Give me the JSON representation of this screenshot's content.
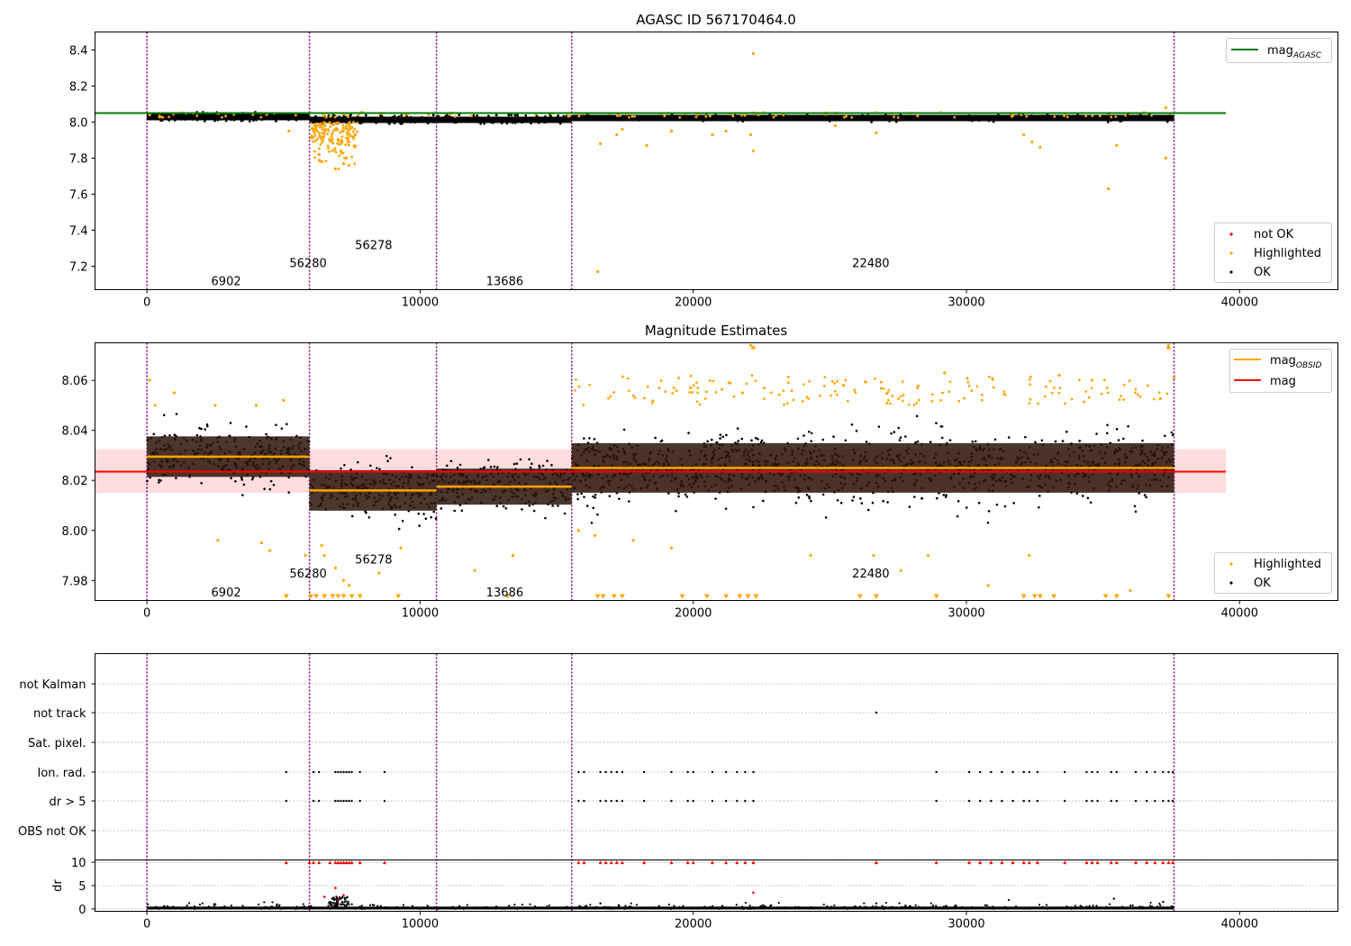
{
  "chart_data": [
    {
      "type": "scatter",
      "title": "AGASC ID 567170464.0",
      "xlim": [
        -1900,
        43600
      ],
      "ylim": [
        7.07,
        8.5
      ],
      "xticks": [
        "0",
        "10000",
        "20000",
        "30000",
        "40000"
      ],
      "xtick_values": [
        0,
        10000,
        20000,
        30000,
        40000
      ],
      "yticks": [
        "7.2",
        "7.4",
        "7.6",
        "7.8",
        "8.0",
        "8.2",
        "8.4"
      ],
      "ytick_values": [
        7.2,
        7.4,
        7.6,
        7.8,
        8.0,
        8.2,
        8.4
      ],
      "ref_line": {
        "label_main": "mag",
        "label_sub": "AGASC",
        "value": 8.05,
        "x": [
          -1900,
          39500
        ],
        "color": "#008000"
      },
      "legend_points": [
        {
          "label": "not OK",
          "color": "#ff0000"
        },
        {
          "label": "Highlighted",
          "color": "#ffa500"
        },
        {
          "label": "OK",
          "color": "#000000"
        }
      ],
      "segments": [
        {
          "label": "6902",
          "x_label": 2900,
          "y_label": 7.12
        },
        {
          "label": "56280",
          "x_label": 5900,
          "y_label": 7.22
        },
        {
          "label": "56278",
          "x_label": 8300,
          "y_label": 7.32
        },
        {
          "label": "13686",
          "x_label": 13100,
          "y_label": 7.12
        },
        {
          "label": "22480",
          "x_label": 26500,
          "y_label": 7.22
        }
      ],
      "ok_band": [
        [
          0,
          5950,
          8.03
        ],
        [
          5950,
          10600,
          8.015
        ],
        [
          10600,
          15550,
          8.015
        ],
        [
          15550,
          37600,
          8.025
        ]
      ],
      "highlighted_points": [
        [
          100,
          8.04
        ],
        [
          5200,
          7.95
        ],
        [
          6100,
          7.95
        ],
        [
          6300,
          7.82
        ],
        [
          6400,
          7.78
        ],
        [
          6900,
          7.74
        ],
        [
          7000,
          7.9
        ],
        [
          7100,
          7.84
        ],
        [
          7150,
          7.95
        ],
        [
          7200,
          7.77
        ],
        [
          7300,
          7.8
        ],
        [
          7400,
          7.76
        ],
        [
          7500,
          7.97
        ],
        [
          16500,
          7.17
        ],
        [
          16600,
          7.88
        ],
        [
          17200,
          7.93
        ],
        [
          17400,
          7.96
        ],
        [
          18300,
          7.87
        ],
        [
          19200,
          7.95
        ],
        [
          20700,
          7.93
        ],
        [
          21200,
          7.95
        ],
        [
          22100,
          7.93
        ],
        [
          22200,
          7.84
        ],
        [
          22200,
          8.38
        ],
        [
          25200,
          7.98
        ],
        [
          26700,
          7.94
        ],
        [
          32100,
          7.93
        ],
        [
          32400,
          7.89
        ],
        [
          32700,
          7.86
        ],
        [
          35200,
          7.63
        ],
        [
          35500,
          7.87
        ],
        [
          37300,
          7.8
        ],
        [
          37300,
          8.08
        ]
      ]
    },
    {
      "type": "scatter",
      "title": "Magnitude Estimates",
      "xlim": [
        -1900,
        43600
      ],
      "ylim": [
        7.972,
        8.075
      ],
      "xticks": [
        "0",
        "10000",
        "20000",
        "30000",
        "40000"
      ],
      "xtick_values": [
        0,
        10000,
        20000,
        30000,
        40000
      ],
      "yticks": [
        "7.98",
        "8.00",
        "8.02",
        "8.04",
        "8.06"
      ],
      "ytick_values": [
        7.98,
        8.0,
        8.02,
        8.04,
        8.06
      ],
      "mag_line": {
        "label": "mag",
        "value": 8.0235,
        "band": [
          8.015,
          8.0325
        ],
        "x": [
          -1900,
          39500
        ],
        "color": "#ff0000"
      },
      "mag_obsid": {
        "label_main": "mag",
        "label_sub": "OBSID",
        "color": "#ffa500",
        "segments": [
          [
            0,
            5950,
            8.0295
          ],
          [
            5950,
            10600,
            8.016
          ],
          [
            10600,
            15550,
            8.0175
          ],
          [
            15550,
            37600,
            8.025
          ]
        ]
      },
      "legend_points": [
        {
          "label": "Highlighted",
          "color": "#ffa500"
        },
        {
          "label": "OK",
          "color": "#000000"
        }
      ],
      "segments": [
        {
          "label": "6902",
          "x_label": 2900,
          "y_label": 7.9755
        },
        {
          "label": "56280",
          "x_label": 5900,
          "y_label": 7.983
        },
        {
          "label": "56278",
          "x_label": 8300,
          "y_label": 7.9885
        },
        {
          "label": "13686",
          "x_label": 13100,
          "y_label": 7.9755
        },
        {
          "label": "22480",
          "x_label": 26500,
          "y_label": 7.983
        }
      ],
      "ok_spread": [
        [
          0,
          5950,
          8.0295,
          0.009
        ],
        [
          5950,
          10600,
          8.016,
          0.009
        ],
        [
          10600,
          15550,
          8.0175,
          0.008
        ],
        [
          15550,
          37600,
          8.025,
          0.011
        ]
      ],
      "highlighted_points": [
        [
          100,
          8.06
        ],
        [
          300,
          8.05
        ],
        [
          1000,
          8.055
        ],
        [
          2500,
          8.05
        ],
        [
          4000,
          8.05
        ],
        [
          5000,
          8.052
        ],
        [
          2600,
          7.996
        ],
        [
          4200,
          7.995
        ],
        [
          4500,
          7.992
        ],
        [
          5800,
          7.99
        ],
        [
          6400,
          7.994
        ],
        [
          6500,
          7.99
        ],
        [
          6900,
          7.985
        ],
        [
          7200,
          7.98
        ],
        [
          7400,
          7.978
        ],
        [
          8500,
          7.983
        ],
        [
          9300,
          7.993
        ],
        [
          12000,
          7.984
        ],
        [
          13400,
          7.99
        ],
        [
          15800,
          8.0
        ],
        [
          16400,
          7.998
        ],
        [
          17800,
          7.996
        ],
        [
          19200,
          7.993
        ],
        [
          19900,
          8.057
        ],
        [
          21800,
          8.055
        ],
        [
          22100,
          8.074
        ],
        [
          24300,
          7.99
        ],
        [
          25500,
          8.058
        ],
        [
          26600,
          7.99
        ],
        [
          27600,
          7.984
        ],
        [
          28600,
          7.99
        ],
        [
          29200,
          8.063
        ],
        [
          30800,
          7.978
        ],
        [
          32300,
          7.99
        ],
        [
          33400,
          8.062
        ],
        [
          34600,
          8.06
        ],
        [
          36000,
          7.976
        ],
        [
          37400,
          8.074
        ],
        [
          37600,
          8.061
        ]
      ],
      "clipped_low": [
        5100,
        6000,
        6200,
        6500,
        6800,
        7000,
        7200,
        7500,
        7800,
        9200,
        13200,
        16500,
        16700,
        17100,
        17400,
        19600,
        20500,
        21200,
        21700,
        22000,
        22300,
        26100,
        26700,
        28900,
        32100,
        32500,
        32700,
        33200,
        35100,
        35500,
        37400
      ],
      "clipped_high": [
        22200,
        37400
      ]
    },
    {
      "type": "scatter",
      "title": "",
      "xlim": [
        -1900,
        43600
      ],
      "categories": [
        "not Kalman",
        "not track",
        "Sat. pixel.",
        "Ion. rad.",
        "dr > 5",
        "OBS not OK"
      ],
      "xticks": [
        "0",
        "10000",
        "20000",
        "30000",
        "40000"
      ],
      "xtick_values": [
        0,
        10000,
        20000,
        30000,
        40000
      ],
      "flag_points": {
        "not track": [
          26700
        ],
        "Ion. rad.": [
          5100,
          6100,
          6300,
          6900,
          7000,
          7100,
          7200,
          7300,
          7400,
          7500,
          7800,
          8700,
          15800,
          16000,
          16600,
          16800,
          17000,
          17200,
          17400,
          18200,
          19200,
          19800,
          20000,
          20700,
          21200,
          21600,
          21900,
          22200,
          28900,
          30100,
          30500,
          30900,
          31300,
          31700,
          32100,
          32300,
          32600,
          33600,
          34400,
          34600,
          34800,
          35300,
          35500,
          36200,
          36600,
          36900,
          37200,
          37400,
          37550
        ],
        "dr > 5": [
          5100,
          6100,
          6300,
          6900,
          7000,
          7100,
          7200,
          7300,
          7400,
          7500,
          7800,
          8700,
          15800,
          16000,
          16600,
          16800,
          17000,
          17200,
          17400,
          18200,
          19200,
          19800,
          20000,
          20700,
          21200,
          21600,
          21900,
          22200,
          28900,
          30100,
          30500,
          30900,
          31300,
          31700,
          32100,
          32300,
          32600,
          33600,
          34400,
          34600,
          34800,
          35300,
          35500,
          36200,
          36600,
          36900,
          37200,
          37400,
          37550
        ]
      },
      "dr": {
        "ylabel": "dr",
        "ylim": [
          -0.5,
          10.5
        ],
        "yticks": [
          "0",
          "5",
          "10"
        ],
        "ytick_values": [
          0,
          5,
          10
        ],
        "clipped_10": [
          5100,
          5950,
          6100,
          6300,
          6700,
          6900,
          7000,
          7100,
          7200,
          7300,
          7400,
          7500,
          7800,
          8700,
          15800,
          16000,
          16600,
          16800,
          17000,
          17200,
          17400,
          18200,
          19200,
          19800,
          20000,
          20700,
          21200,
          21600,
          21900,
          22200,
          26700,
          28900,
          30100,
          30500,
          30900,
          31300,
          31700,
          32100,
          32300,
          32600,
          33600,
          34400,
          34600,
          34800,
          35300,
          35500,
          36200,
          36600,
          36900,
          37200,
          37400,
          37550
        ],
        "red_points": [
          [
            6500,
            2.6
          ],
          [
            6900,
            4.5
          ],
          [
            7200,
            3.0
          ],
          [
            7000,
            2.0
          ],
          [
            22200,
            3.5
          ]
        ],
        "black_points": [
          [
            6800,
            2.2
          ],
          [
            6950,
            1.8
          ],
          [
            7050,
            2.5
          ],
          [
            7150,
            1.5
          ],
          [
            7250,
            2.0
          ],
          [
            7350,
            1.2
          ],
          [
            7500,
            1.0
          ],
          [
            16600,
            1.2
          ],
          [
            35400,
            2.2
          ],
          [
            37200,
            1.5
          ],
          [
            26700,
            1.2
          ]
        ]
      }
    }
  ],
  "vlines": [
    0,
    5950,
    10600,
    15550,
    37600
  ],
  "colors": {
    "ok": "#000000",
    "highlighted": "#ffa500",
    "not_ok": "#ff0000",
    "vline": "#800080",
    "mag_agasc": "#008000",
    "mag": "#ff0000",
    "mag_obsid": "#ffa500"
  }
}
